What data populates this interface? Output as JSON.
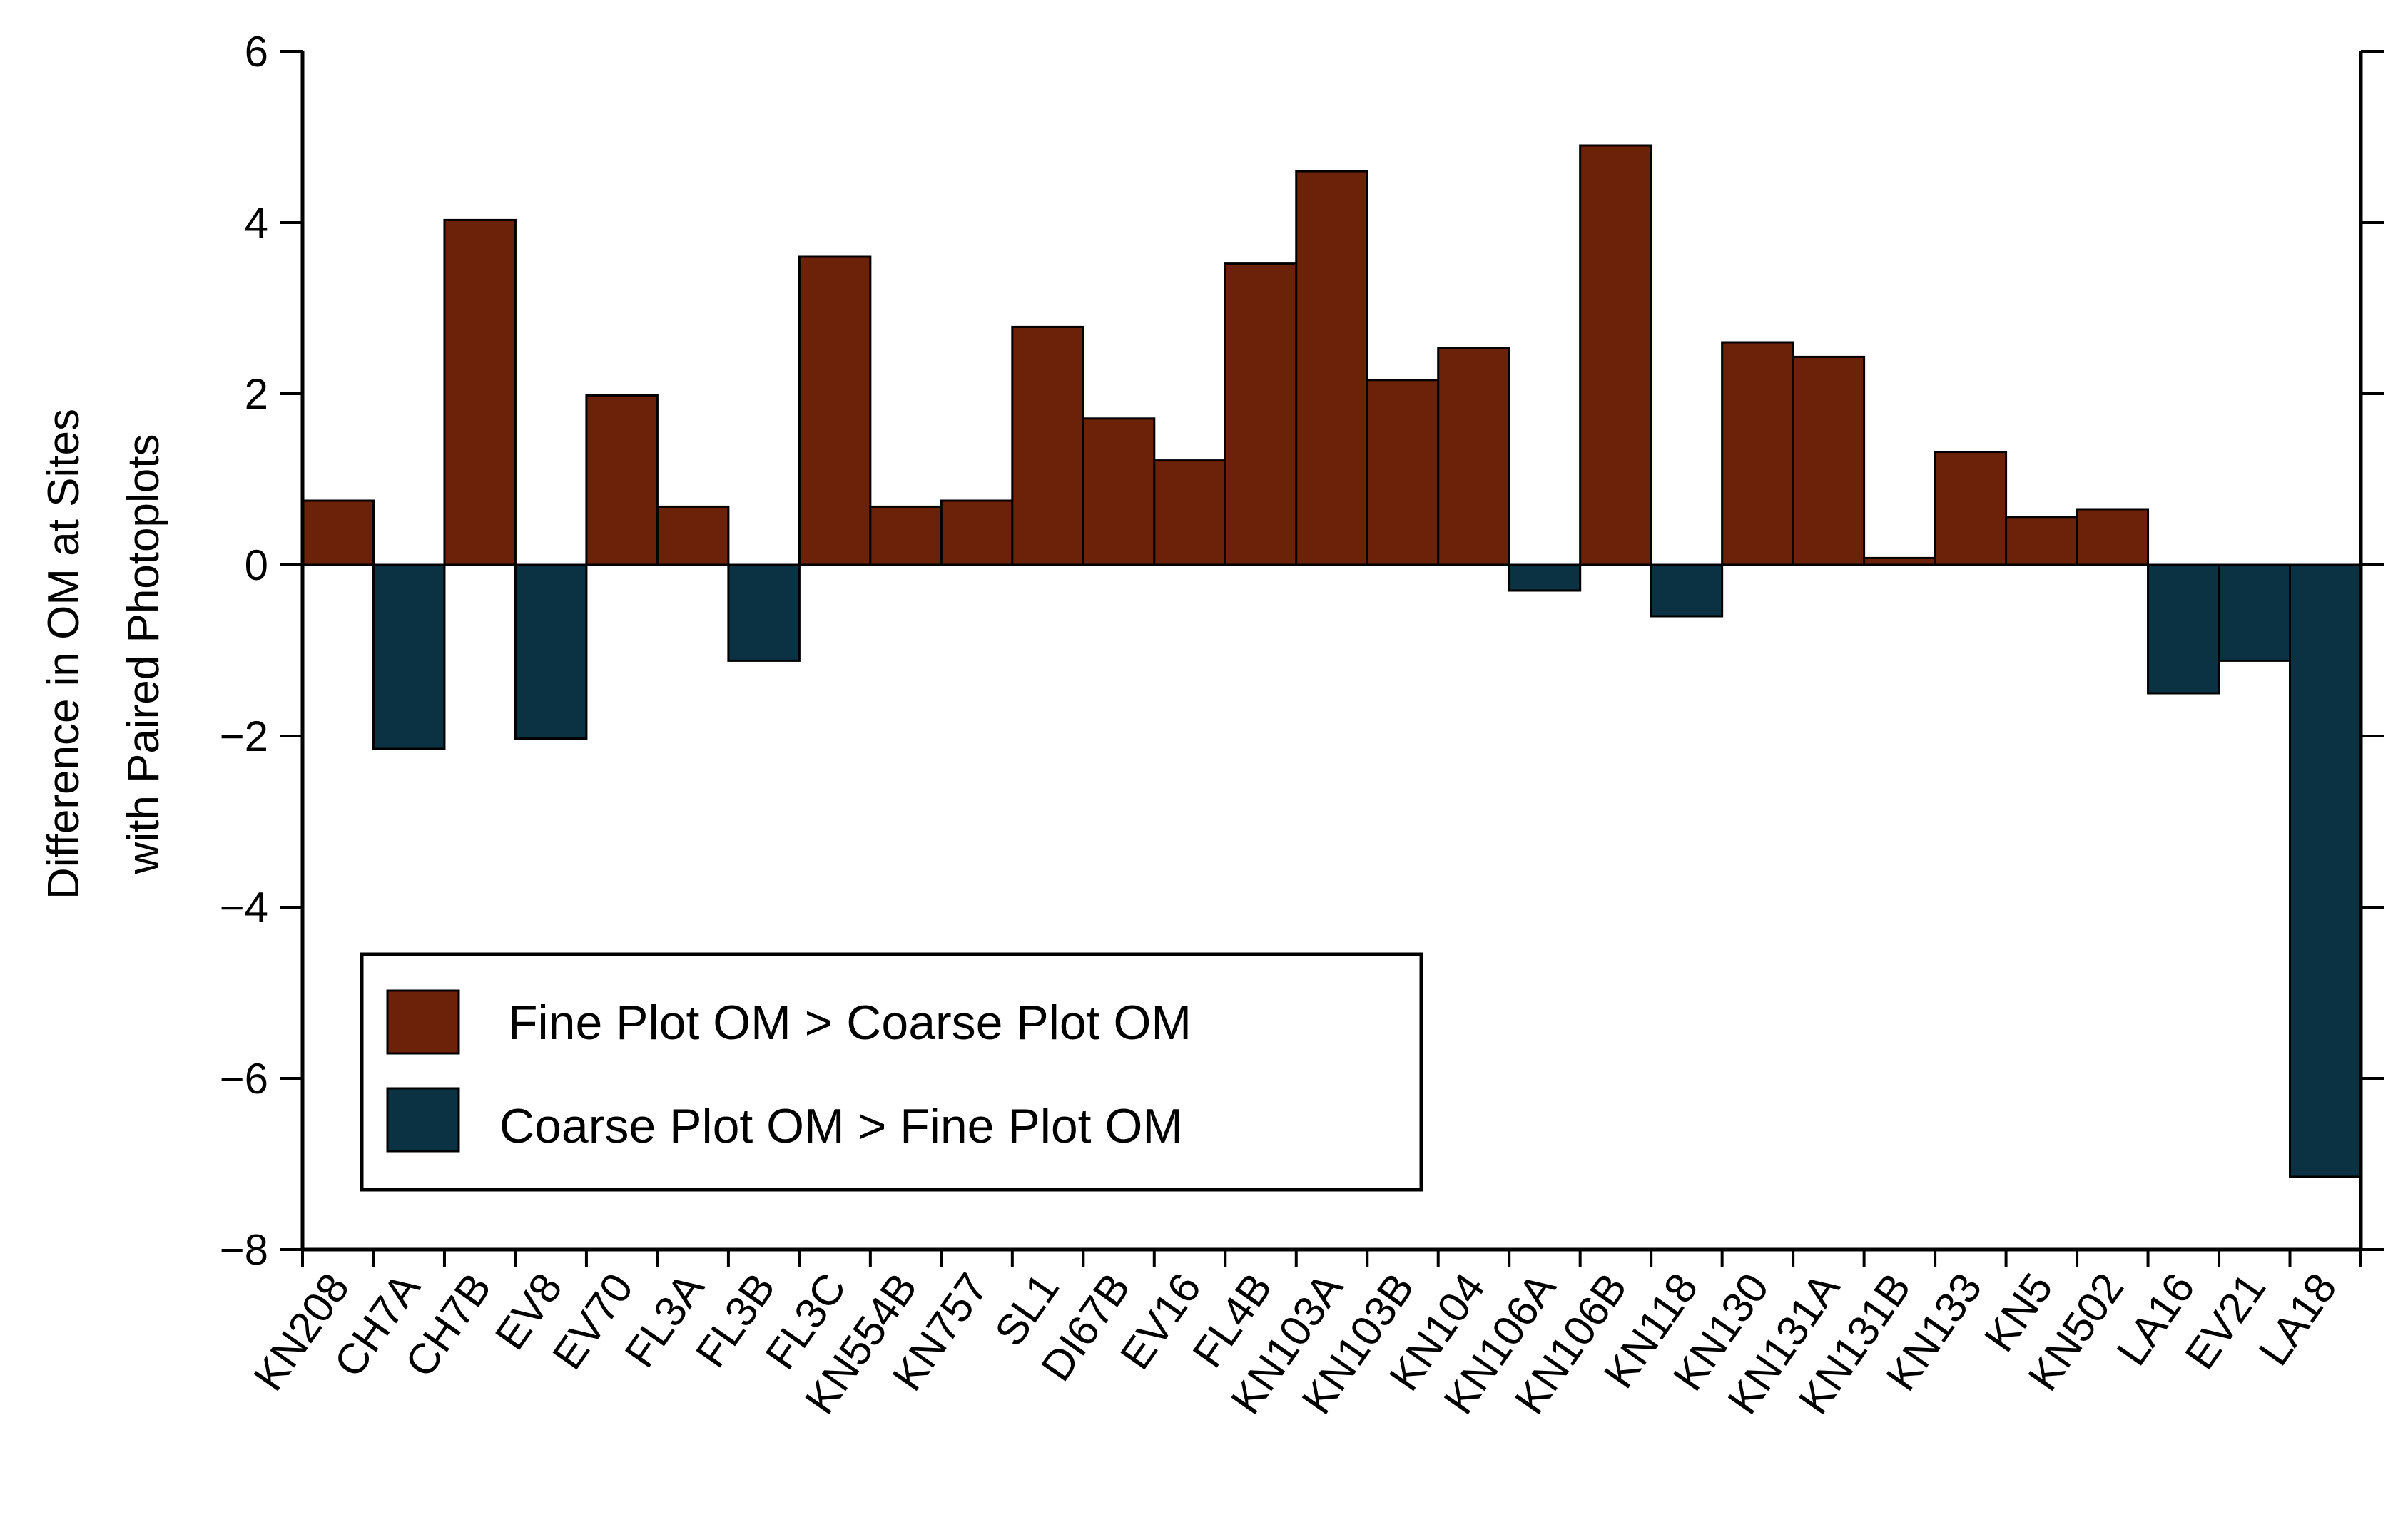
{
  "chart_data": {
    "type": "bar",
    "title": "",
    "xlabel": "",
    "ylabel_lines": [
      "Difference in OM at Sites",
      "with Paired Photoplots"
    ],
    "ylim": [
      -8,
      6
    ],
    "yticks": [
      6,
      4,
      2,
      0,
      -2,
      -4,
      -6,
      -8
    ],
    "ytick_labels": [
      "6",
      "4",
      "2",
      "0",
      "−2",
      "−4",
      "−6",
      "−8"
    ],
    "grid": false,
    "legend_position": "bottom-left",
    "colors": {
      "positive": "#6b2209",
      "negative": "#0b3242"
    },
    "categories": [
      "KN208",
      "CH7A",
      "CH7B",
      "EV8",
      "EV70",
      "FL3A",
      "FL3B",
      "FL3C",
      "KN554B",
      "KN757",
      "SL1",
      "DI67B",
      "EV16",
      "FL4B",
      "KN103A",
      "KN103B",
      "KN104",
      "KN106A",
      "KN106B",
      "KN118",
      "KN130",
      "KN131A",
      "KN131B",
      "KN133",
      "KN5",
      "KN502",
      "LA16",
      "EV21",
      "LA18"
    ],
    "values": [
      0.75,
      -2.15,
      4.03,
      -2.03,
      1.98,
      0.68,
      -1.12,
      3.6,
      0.68,
      0.75,
      2.78,
      1.71,
      1.22,
      3.52,
      4.6,
      2.16,
      2.53,
      -0.3,
      4.9,
      -0.6,
      2.6,
      2.43,
      0.08,
      1.32,
      0.56,
      0.65,
      -1.5,
      -1.12,
      -7.15
    ],
    "legend": [
      {
        "label": "Fine Plot OM > Coarse Plot OM",
        "color": "#6b2209"
      },
      {
        "label": "Coarse Plot OM > Fine Plot OM",
        "color": "#0b3242"
      }
    ]
  }
}
